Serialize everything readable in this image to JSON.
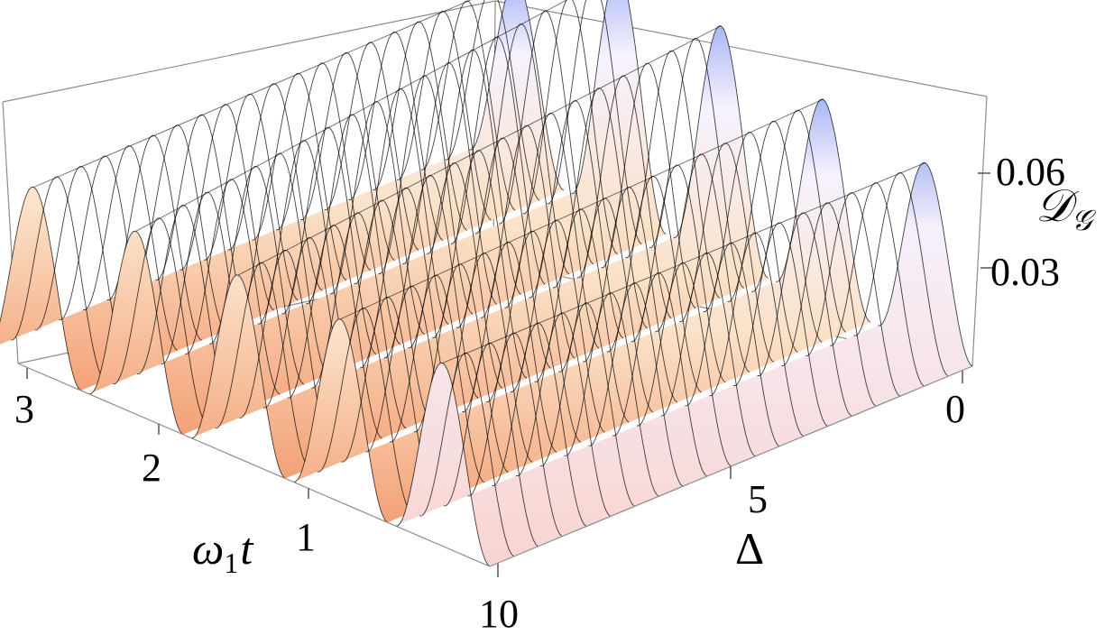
{
  "chart_data": {
    "type": "surface3d",
    "title": "",
    "xlabel_var": "ω",
    "xlabel_sub": "1",
    "xlabel_tail": "t",
    "ylabel": "Δ",
    "zlabel_main": "𝒟",
    "zlabel_sub": "𝒢",
    "x_range": [
      0,
      3
    ],
    "y_range": [
      0,
      10
    ],
    "z_range": [
      0,
      0.08
    ],
    "x_ticks": [
      "1",
      "2",
      "3"
    ],
    "y_ticks": [
      "0",
      "5",
      "10"
    ],
    "z_ticks": [
      "0.03",
      "0.06"
    ],
    "mesh_x_lines": 8,
    "mesh_y_lines": 20,
    "peak_x": [
      0.3,
      0.95,
      1.6,
      2.25,
      2.9
    ],
    "peak_z_at_delta0": [
      0.056,
      0.056,
      0.056,
      0.056,
      0.056
    ],
    "peak_z_at_delta10": [
      0.056,
      0.062,
      0.071,
      0.074,
      0.058
    ],
    "colors": {
      "low": "#f3a176",
      "mid": "#f9e0c8",
      "high": "#a9b6f2",
      "far_tint": "#f9d7d4",
      "mesh": "#000000",
      "box": "#8c8c8c"
    }
  }
}
